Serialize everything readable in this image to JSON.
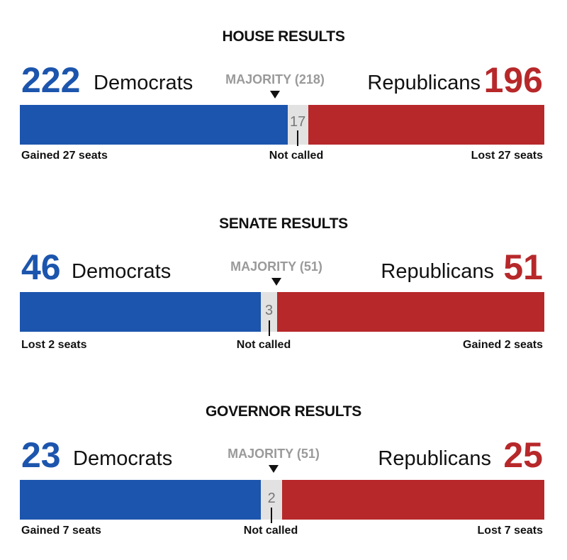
{
  "colors": {
    "dem": "#1c55ad",
    "rep": "#b7282a",
    "not_called": "#e2e2e2",
    "majority_text": "#9a9a9a"
  },
  "chart_data": [
    {
      "type": "bar",
      "title": "HOUSE RESULTS",
      "total": 435,
      "dem": {
        "value": 222,
        "label": "Democrats",
        "change": "Gained 27 seats"
      },
      "not_called": {
        "value": 17,
        "label": "Not called"
      },
      "rep": {
        "value": 196,
        "label": "Republicans",
        "change": "Lost 27 seats"
      },
      "majority": {
        "value": 218,
        "label": "MAJORITY (218)"
      }
    },
    {
      "type": "bar",
      "title": "SENATE RESULTS",
      "total": 100,
      "dem": {
        "value": 46,
        "label": "Democrats",
        "change": "Lost 2 seats"
      },
      "not_called": {
        "value": 3,
        "label": "Not called"
      },
      "rep": {
        "value": 51,
        "label": "Republicans",
        "change": "Gained 2 seats"
      },
      "majority": {
        "value": 51,
        "label": "MAJORITY (51)"
      }
    },
    {
      "type": "bar",
      "title": "GOVERNOR RESULTS",
      "total": 50,
      "dem": {
        "value": 23,
        "label": "Democrats",
        "change": "Gained 7 seats"
      },
      "not_called": {
        "value": 2,
        "label": "Not called"
      },
      "rep": {
        "value": 25,
        "label": "Republicans",
        "change": "Lost 7 seats"
      },
      "majority": {
        "value": 51,
        "label": "MAJORITY (51)"
      }
    }
  ]
}
